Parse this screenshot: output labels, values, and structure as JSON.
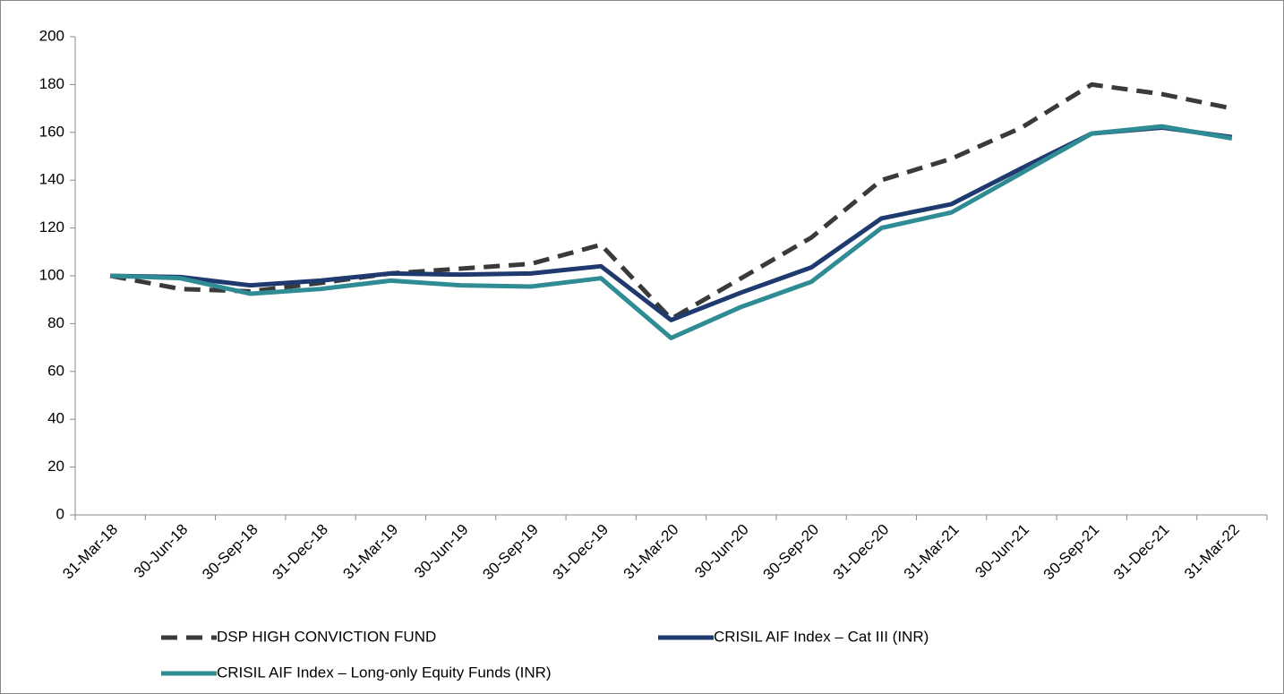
{
  "chart_data": {
    "type": "line",
    "categories": [
      "31-Mar-18",
      "30-Jun-18",
      "30-Sep-18",
      "31-Dec-18",
      "31-Mar-19",
      "30-Jun-19",
      "30-Sep-19",
      "31-Dec-19",
      "31-Mar-20",
      "30-Jun-20",
      "30-Sep-20",
      "31-Dec-20",
      "31-Mar-21",
      "30-Jun-21",
      "30-Sep-21",
      "31-Dec-21",
      "31-Mar-22"
    ],
    "series": [
      {
        "name": "DSP HIGH CONVICTION FUND",
        "color": "#3a3a3a",
        "dashed": true,
        "values": [
          100,
          94.5,
          93.5,
          97,
          101,
          103,
          105,
          113,
          82,
          99,
          116,
          140,
          149,
          162,
          180,
          176,
          170
        ]
      },
      {
        "name": "CRISIL AIF Index – Cat III (INR)",
        "color": "#1f3a6e",
        "values": [
          100,
          99.5,
          96,
          98,
          101,
          100.5,
          101,
          104,
          81.5,
          93,
          103.5,
          124,
          130,
          145,
          159.5,
          162,
          158
        ]
      },
      {
        "name": "CRISIL AIF Index – Long-only Equity Funds (INR)",
        "color": "#2f8c94",
        "values": [
          100,
          99,
          92.5,
          94.5,
          98,
          96,
          95.5,
          99,
          74,
          87,
          97.5,
          120,
          126.5,
          143,
          159.5,
          162.5,
          157.5
        ]
      }
    ],
    "ylim": [
      0,
      200
    ],
    "yticks": [
      0,
      20,
      40,
      60,
      80,
      100,
      120,
      140,
      160,
      180,
      200
    ],
    "grid": false
  }
}
